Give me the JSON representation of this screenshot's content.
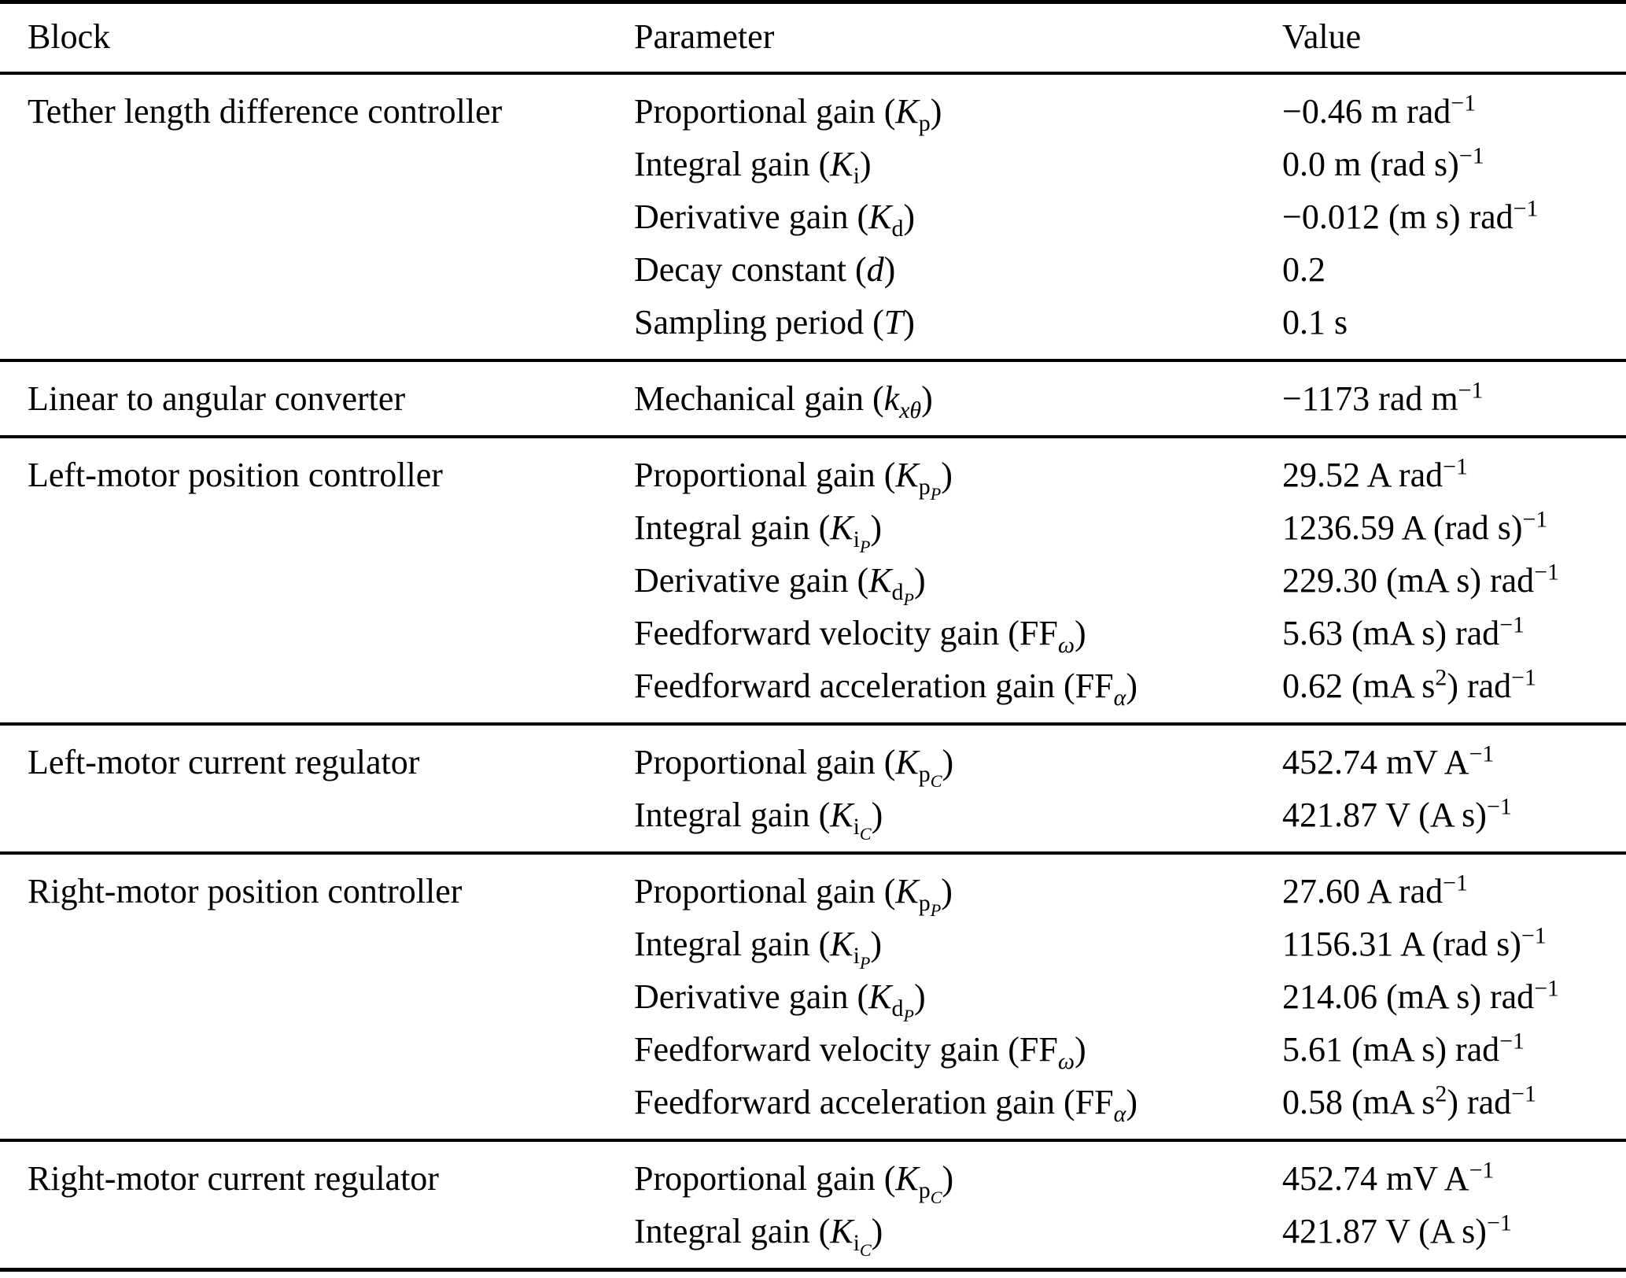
{
  "table": {
    "columns": {
      "block": "Block",
      "parameter": "Parameter",
      "value": "Value"
    },
    "colors": {
      "text": "#000000",
      "background": "#ffffff",
      "rule": "#000000"
    },
    "sections": [
      {
        "block": "Tether length difference controller",
        "rows": [
          {
            "parameter": "Proportional gain (<i>K</i><sub>p</sub>)",
            "value": "−0.46 m rad<sup>−1</sup>"
          },
          {
            "parameter": "Integral gain (<i>K</i><sub>i</sub>)",
            "value": "0.0 m (rad s)<sup>−1</sup>"
          },
          {
            "parameter": "Derivative gain (<i>K</i><sub>d</sub>)",
            "value": "−0.012 (m s) rad<sup>−1</sup>"
          },
          {
            "parameter": "Decay constant (<i>d</i>)",
            "value": "0.2"
          },
          {
            "parameter": "Sampling period (<i>T</i>)",
            "value": "0.1 s"
          }
        ]
      },
      {
        "block": "Linear to angular converter",
        "rows": [
          {
            "parameter": "Mechanical gain (<i>k<sub>xθ</sub></i>)",
            "value": "−1173 rad m<sup>−1</sup>"
          }
        ]
      },
      {
        "block": "Left-motor position controller",
        "rows": [
          {
            "parameter": "Proportional gain (<i>K</i><sub>p<sub><i>P</i></sub></sub>)",
            "value": "29.52 A rad<sup>−1</sup>"
          },
          {
            "parameter": "Integral gain (<i>K</i><sub>i<sub><i>P</i></sub></sub>)",
            "value": "1236.59 A (rad s)<sup>−1</sup>"
          },
          {
            "parameter": "Derivative gain (<i>K</i><sub>d<sub><i>P</i></sub></sub>)",
            "value": "229.30 (mA s) rad<sup>−1</sup>"
          },
          {
            "parameter": "Feedforward velocity gain (FF<sub><i>ω</i></sub>)",
            "value": "5.63 (mA s) rad<sup>−1</sup>"
          },
          {
            "parameter": "Feedforward acceleration gain (FF<sub><i>α</i></sub>)",
            "value": "0.62 (mA s<sup>2</sup>) rad<sup>−1</sup>"
          }
        ]
      },
      {
        "block": "Left-motor current regulator",
        "rows": [
          {
            "parameter": "Proportional gain (<i>K</i><sub>p<sub><i>C</i></sub></sub>)",
            "value": "452.74 mV A<sup>−1</sup>"
          },
          {
            "parameter": "Integral gain (<i>K</i><sub>i<sub><i>C</i></sub></sub>)",
            "value": "421.87 V (A s)<sup>−1</sup>"
          }
        ]
      },
      {
        "block": "Right-motor position controller",
        "rows": [
          {
            "parameter": "Proportional gain (<i>K</i><sub>p<sub><i>P</i></sub></sub>)",
            "value": "27.60 A rad<sup>−1</sup>"
          },
          {
            "parameter": "Integral gain (<i>K</i><sub>i<sub><i>P</i></sub></sub>)",
            "value": "1156.31 A (rad s)<sup>−1</sup>"
          },
          {
            "parameter": "Derivative gain (<i>K</i><sub>d<sub><i>P</i></sub></sub>)",
            "value": "214.06 (mA s) rad<sup>−1</sup>"
          },
          {
            "parameter": "Feedforward velocity gain (FF<sub><i>ω</i></sub>)",
            "value": "5.61 (mA s) rad<sup>−1</sup>"
          },
          {
            "parameter": "Feedforward acceleration gain (FF<sub><i>α</i></sub>)",
            "value": "0.58 (mA s<sup>2</sup>) rad<sup>−1</sup>"
          }
        ]
      },
      {
        "block": "Right-motor current regulator",
        "rows": [
          {
            "parameter": "Proportional gain (<i>K</i><sub>p<sub><i>C</i></sub></sub>)",
            "value": "452.74 mV A<sup>−1</sup>"
          },
          {
            "parameter": "Integral gain (<i>K</i><sub>i<sub><i>C</i></sub></sub>)",
            "value": "421.87 V (A s)<sup>−1</sup>"
          }
        ]
      }
    ]
  }
}
